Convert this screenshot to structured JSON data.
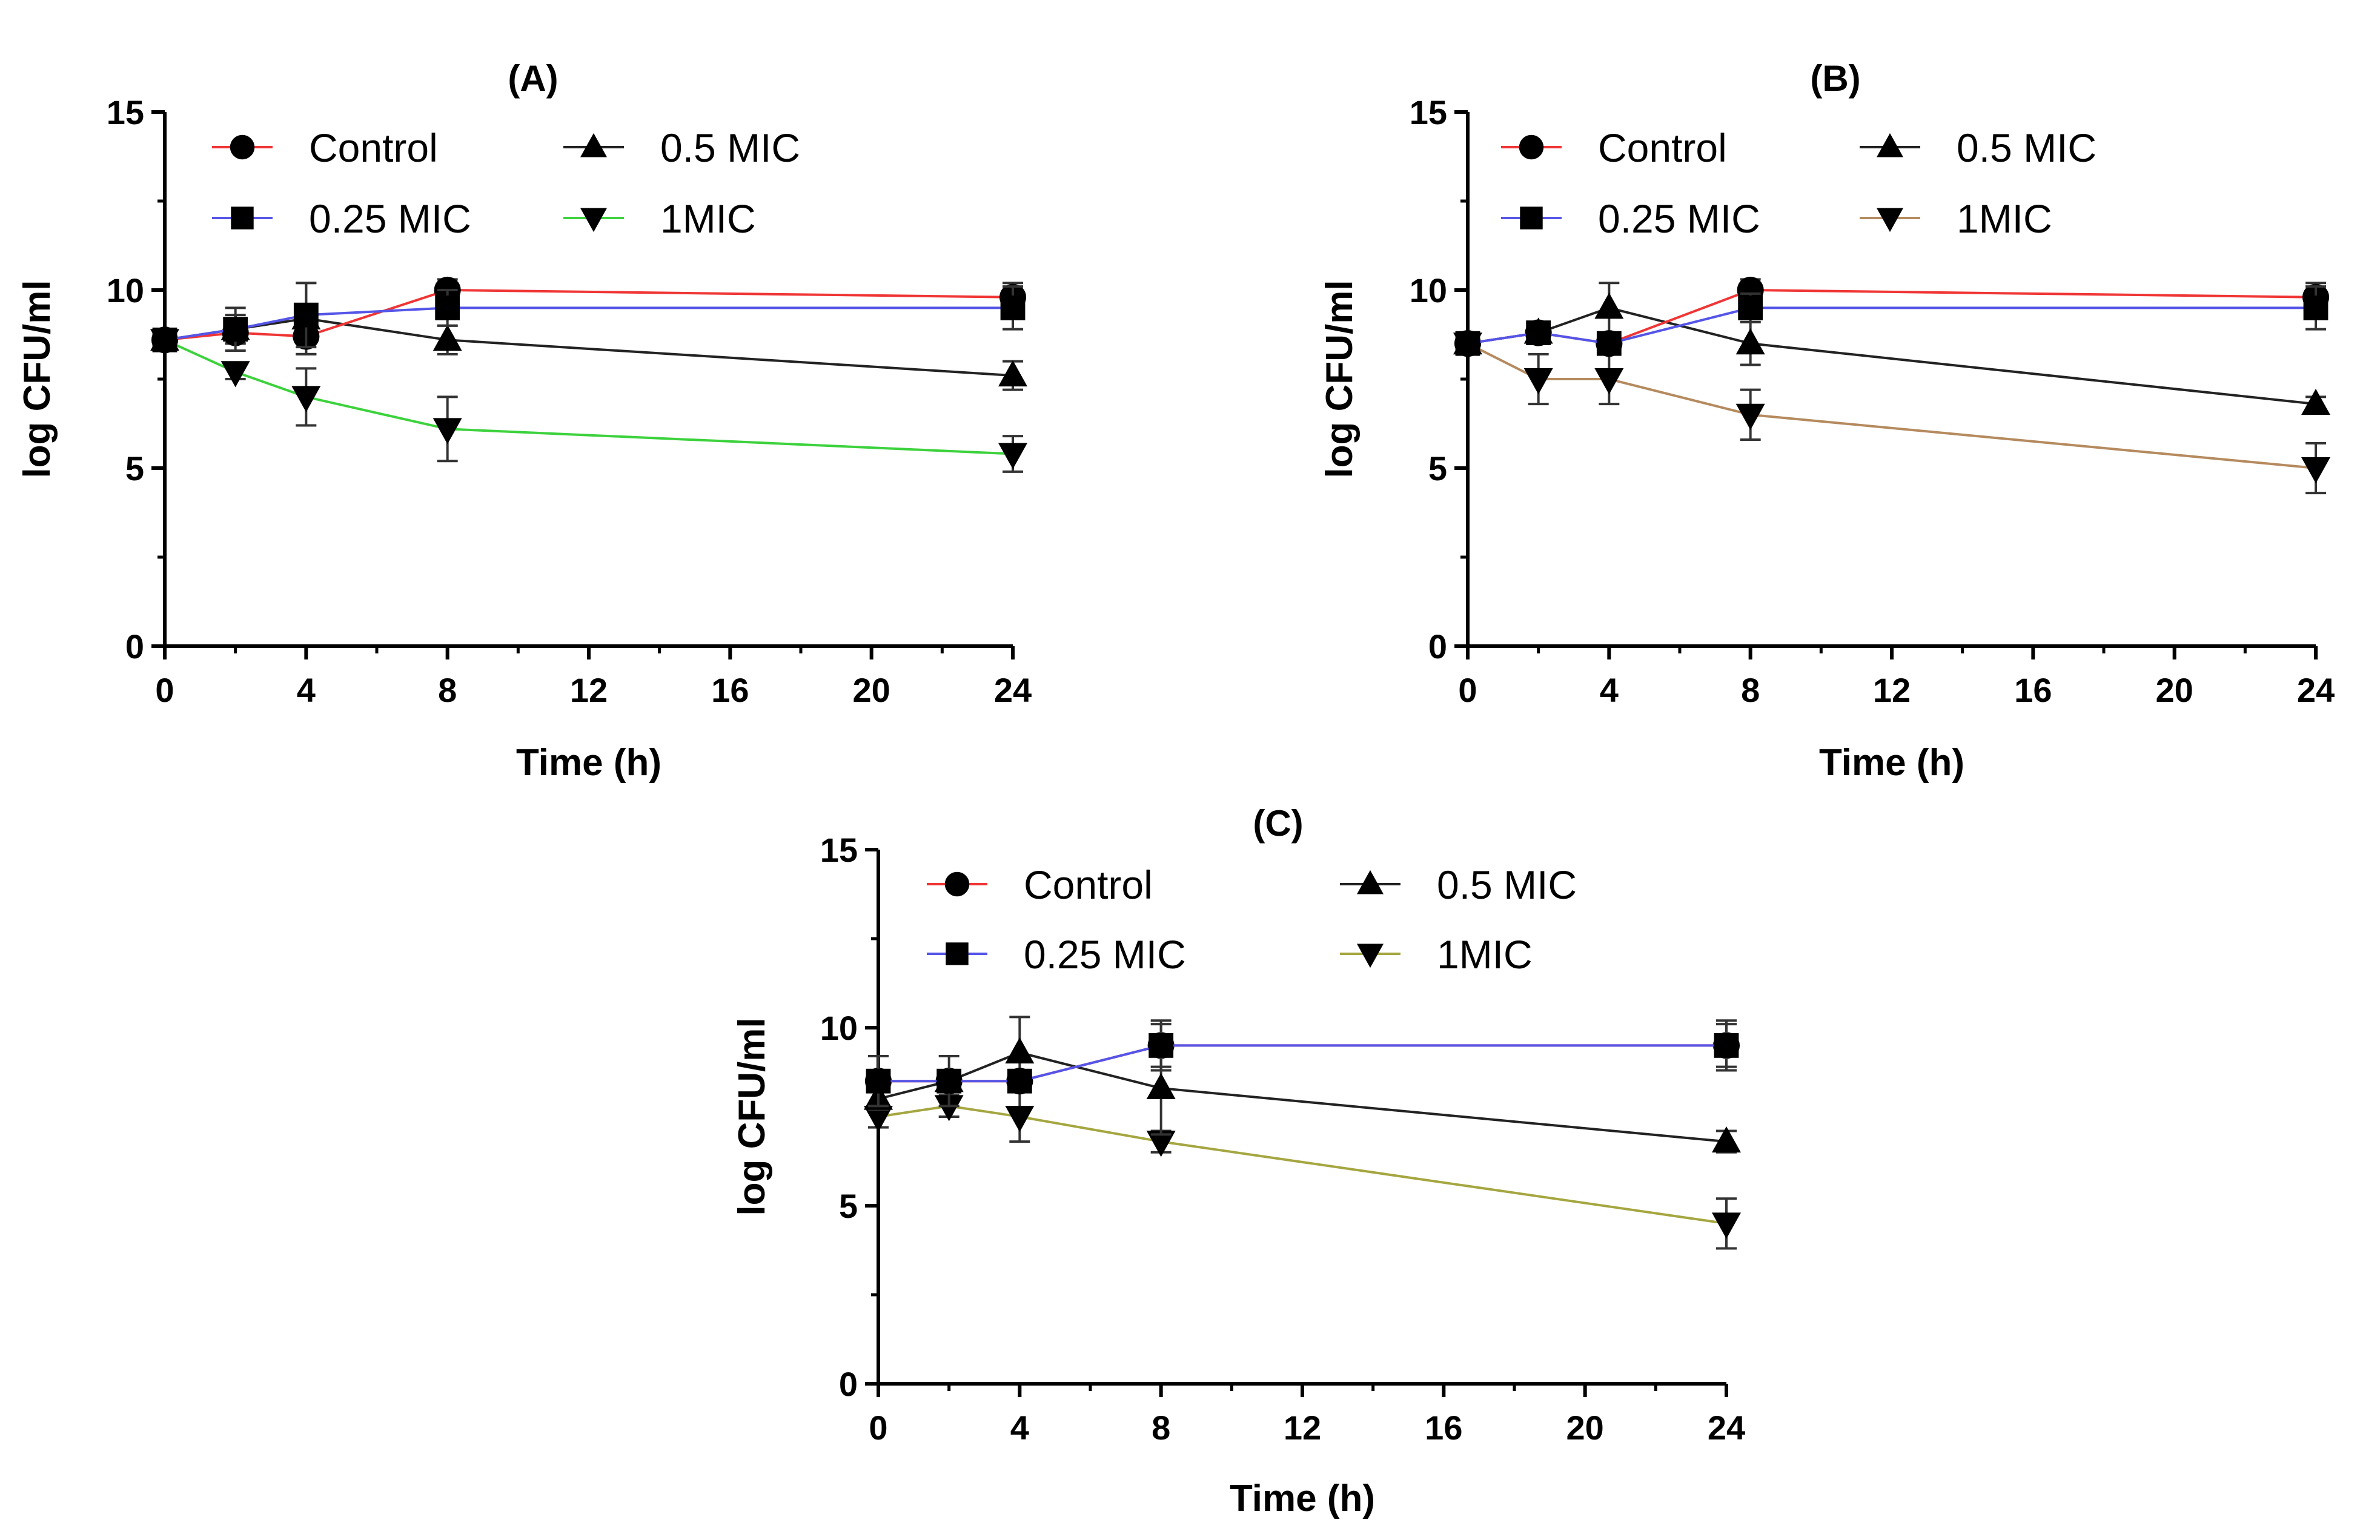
{
  "chart_data": [
    {
      "type": "line",
      "panel_label": "(A)",
      "xlabel": "Time (h)",
      "ylabel": "log CFU/ml",
      "xlim": [
        0,
        24
      ],
      "ylim": [
        0,
        15
      ],
      "x_ticks": [
        "0",
        "4",
        "8",
        "12",
        "16",
        "20",
        "24"
      ],
      "y_ticks": [
        "0",
        "5",
        "10",
        "15"
      ],
      "legend": {
        "placement": "top-left",
        "columns": 2
      },
      "series": [
        {
          "name": "Control",
          "marker": "circle",
          "color": "#f03535",
          "x": [
            0,
            2,
            4,
            8,
            24
          ],
          "values": [
            8.6,
            8.8,
            8.7,
            10.0,
            9.8
          ],
          "errors": [
            0.3,
            0.3,
            0.5,
            0.3,
            0.4
          ]
        },
        {
          "name": "0.25 MIC",
          "marker": "square",
          "color": "#5555e8",
          "x": [
            0,
            2,
            4,
            8,
            24
          ],
          "values": [
            8.6,
            8.9,
            9.3,
            9.5,
            9.5
          ],
          "errors": [
            0.3,
            0.6,
            0.9,
            0.5,
            0.6
          ]
        },
        {
          "name": "0.5 MIC",
          "marker": "triangle-up",
          "color": "#222222",
          "x": [
            0,
            2,
            4,
            8,
            24
          ],
          "values": [
            8.6,
            8.9,
            9.2,
            8.6,
            7.6
          ],
          "errors": [
            0.3,
            0.4,
            1.0,
            0.4,
            0.4
          ]
        },
        {
          "name": "1MIC",
          "marker": "triangle-down",
          "color": "#3cd23c",
          "x": [
            0,
            2,
            4,
            8,
            24
          ],
          "values": [
            8.6,
            7.7,
            7.0,
            6.1,
            5.4
          ],
          "errors": [
            0.3,
            0.2,
            0.8,
            0.9,
            0.5
          ]
        }
      ]
    },
    {
      "type": "line",
      "panel_label": "(B)",
      "xlabel": "Time (h)",
      "ylabel": "log CFU/ml",
      "xlim": [
        0,
        24
      ],
      "ylim": [
        0,
        15
      ],
      "x_ticks": [
        "0",
        "4",
        "8",
        "12",
        "16",
        "20",
        "24"
      ],
      "y_ticks": [
        "0",
        "5",
        "10",
        "15"
      ],
      "legend": {
        "placement": "top-left",
        "columns": 2
      },
      "series": [
        {
          "name": "Control",
          "marker": "circle",
          "color": "#f03535",
          "x": [
            0,
            2,
            4,
            8,
            24
          ],
          "values": [
            8.5,
            8.8,
            8.5,
            10.0,
            9.8
          ],
          "errors": [
            0.3,
            0.3,
            0.3,
            0.3,
            0.4
          ]
        },
        {
          "name": "0.25 MIC",
          "marker": "square",
          "color": "#5555e8",
          "x": [
            0,
            2,
            4,
            8,
            24
          ],
          "values": [
            8.5,
            8.8,
            8.5,
            9.5,
            9.5
          ],
          "errors": [
            0.3,
            0.2,
            0.3,
            0.4,
            0.6
          ]
        },
        {
          "name": "0.5 MIC",
          "marker": "triangle-up",
          "color": "#222222",
          "x": [
            0,
            2,
            4,
            8,
            24
          ],
          "values": [
            8.5,
            8.8,
            9.5,
            8.5,
            6.8
          ],
          "errors": [
            0.3,
            0.2,
            0.7,
            0.6,
            0.2
          ]
        },
        {
          "name": "1MIC",
          "marker": "triangle-down",
          "color": "#b58a5e",
          "x": [
            0,
            2,
            4,
            8,
            24
          ],
          "values": [
            8.5,
            7.5,
            7.5,
            6.5,
            5.0
          ],
          "errors": [
            0.3,
            0.7,
            0.7,
            0.7,
            0.7
          ]
        }
      ]
    },
    {
      "type": "line",
      "panel_label": "(C)",
      "xlabel": "Time (h)",
      "ylabel": "log CFU/ml",
      "xlim": [
        0,
        24
      ],
      "ylim": [
        0,
        15
      ],
      "x_ticks": [
        "0",
        "4",
        "8",
        "12",
        "16",
        "20",
        "24"
      ],
      "y_ticks": [
        "0",
        "5",
        "10",
        "15"
      ],
      "legend": {
        "placement": "top-left",
        "columns": 2
      },
      "series": [
        {
          "name": "Control",
          "marker": "circle",
          "color": "#f03535",
          "x": [
            0,
            2,
            4,
            8,
            24
          ],
          "values": [
            8.5,
            8.5,
            8.5,
            9.5,
            9.5
          ],
          "errors": [
            0.3,
            0.3,
            0.3,
            0.6,
            0.6
          ]
        },
        {
          "name": "0.25 MIC",
          "marker": "square",
          "color": "#5555e8",
          "x": [
            0,
            2,
            4,
            8,
            24
          ],
          "values": [
            8.5,
            8.5,
            8.5,
            9.5,
            9.5
          ],
          "errors": [
            0.7,
            0.7,
            0.3,
            0.7,
            0.7
          ]
        },
        {
          "name": "0.5 MIC",
          "marker": "triangle-up",
          "color": "#222222",
          "x": [
            0,
            2,
            4,
            8,
            24
          ],
          "values": [
            8.0,
            8.5,
            9.3,
            8.3,
            6.8
          ],
          "errors": [
            0.3,
            0.3,
            1.0,
            1.3,
            0.3
          ]
        },
        {
          "name": "1MIC",
          "marker": "triangle-down",
          "color": "#a5a640",
          "x": [
            0,
            2,
            4,
            8,
            24
          ],
          "values": [
            7.5,
            7.8,
            7.5,
            6.8,
            4.5
          ],
          "errors": [
            0.3,
            0.3,
            0.7,
            0.3,
            0.7
          ]
        }
      ]
    }
  ]
}
